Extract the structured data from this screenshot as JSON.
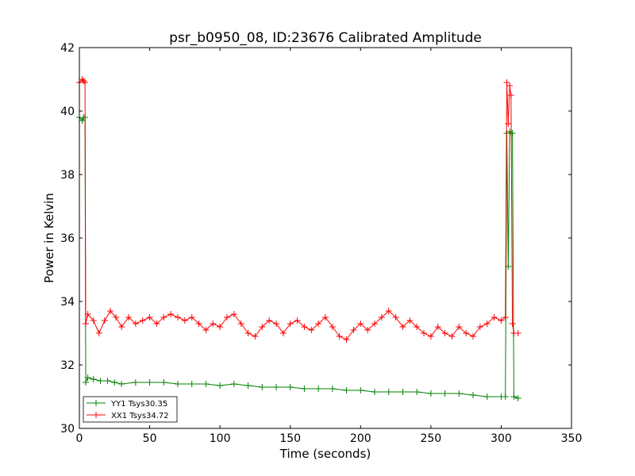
{
  "chart_data": {
    "type": "line",
    "title": "psr_b0950_08, ID:23676 Calibrated Amplitude",
    "xlabel": "Time (seconds)",
    "ylabel": "Power in Kelvin",
    "xlim": [
      0,
      350
    ],
    "ylim": [
      30,
      42
    ],
    "xticks": [
      0,
      50,
      100,
      150,
      200,
      250,
      300,
      350
    ],
    "yticks": [
      30,
      32,
      34,
      36,
      38,
      40,
      42
    ],
    "grid": false,
    "legend_position": "lower-left",
    "marker": "+",
    "series": [
      {
        "name": "YY1 Tsys30.35",
        "color": "#008000",
        "points": [
          [
            0,
            39.8
          ],
          [
            2,
            39.7
          ],
          [
            3,
            39.8
          ],
          [
            4,
            39.8
          ],
          [
            4.5,
            31.45
          ],
          [
            6,
            31.6
          ],
          [
            10,
            31.55
          ],
          [
            15,
            31.5
          ],
          [
            20,
            31.5
          ],
          [
            25,
            31.45
          ],
          [
            30,
            31.4
          ],
          [
            40,
            31.45
          ],
          [
            50,
            31.45
          ],
          [
            60,
            31.45
          ],
          [
            70,
            31.4
          ],
          [
            80,
            31.4
          ],
          [
            90,
            31.4
          ],
          [
            100,
            31.35
          ],
          [
            110,
            31.4
          ],
          [
            120,
            31.35
          ],
          [
            130,
            31.3
          ],
          [
            140,
            31.3
          ],
          [
            150,
            31.3
          ],
          [
            160,
            31.25
          ],
          [
            170,
            31.25
          ],
          [
            180,
            31.25
          ],
          [
            190,
            31.2
          ],
          [
            200,
            31.2
          ],
          [
            210,
            31.15
          ],
          [
            220,
            31.15
          ],
          [
            230,
            31.15
          ],
          [
            240,
            31.15
          ],
          [
            250,
            31.1
          ],
          [
            260,
            31.1
          ],
          [
            270,
            31.1
          ],
          [
            280,
            31.05
          ],
          [
            290,
            31.0
          ],
          [
            300,
            31.0
          ],
          [
            303,
            31.0
          ],
          [
            304,
            39.3
          ],
          [
            305,
            35.1
          ],
          [
            306,
            39.35
          ],
          [
            307,
            39.3
          ],
          [
            308,
            39.3
          ],
          [
            309,
            31.0
          ],
          [
            312,
            30.95
          ]
        ]
      },
      {
        "name": "XX1 Tsys34.72",
        "color": "#ff0000",
        "points": [
          [
            0,
            40.9
          ],
          [
            2,
            41.0
          ],
          [
            3,
            40.95
          ],
          [
            4,
            40.9
          ],
          [
            4.5,
            33.3
          ],
          [
            6,
            33.6
          ],
          [
            10,
            33.4
          ],
          [
            14,
            33.0
          ],
          [
            18,
            33.4
          ],
          [
            22,
            33.7
          ],
          [
            26,
            33.5
          ],
          [
            30,
            33.2
          ],
          [
            35,
            33.5
          ],
          [
            40,
            33.3
          ],
          [
            45,
            33.4
          ],
          [
            50,
            33.5
          ],
          [
            55,
            33.3
          ],
          [
            60,
            33.5
          ],
          [
            65,
            33.6
          ],
          [
            70,
            33.5
          ],
          [
            75,
            33.4
          ],
          [
            80,
            33.5
          ],
          [
            85,
            33.3
          ],
          [
            90,
            33.1
          ],
          [
            95,
            33.3
          ],
          [
            100,
            33.2
          ],
          [
            105,
            33.5
          ],
          [
            110,
            33.6
          ],
          [
            115,
            33.3
          ],
          [
            120,
            33.0
          ],
          [
            125,
            32.9
          ],
          [
            130,
            33.2
          ],
          [
            135,
            33.4
          ],
          [
            140,
            33.3
          ],
          [
            145,
            33.0
          ],
          [
            150,
            33.3
          ],
          [
            155,
            33.4
          ],
          [
            160,
            33.2
          ],
          [
            165,
            33.1
          ],
          [
            170,
            33.3
          ],
          [
            175,
            33.5
          ],
          [
            180,
            33.2
          ],
          [
            185,
            32.9
          ],
          [
            190,
            32.8
          ],
          [
            195,
            33.1
          ],
          [
            200,
            33.3
          ],
          [
            205,
            33.1
          ],
          [
            210,
            33.3
          ],
          [
            215,
            33.5
          ],
          [
            220,
            33.7
          ],
          [
            225,
            33.5
          ],
          [
            230,
            33.2
          ],
          [
            235,
            33.4
          ],
          [
            240,
            33.2
          ],
          [
            245,
            33.0
          ],
          [
            250,
            32.9
          ],
          [
            255,
            33.2
          ],
          [
            260,
            33.0
          ],
          [
            265,
            32.9
          ],
          [
            270,
            33.2
          ],
          [
            275,
            33.0
          ],
          [
            280,
            32.9
          ],
          [
            285,
            33.2
          ],
          [
            290,
            33.3
          ],
          [
            295,
            33.5
          ],
          [
            300,
            33.4
          ],
          [
            303,
            33.5
          ],
          [
            304,
            40.9
          ],
          [
            305,
            39.6
          ],
          [
            306,
            40.8
          ],
          [
            307,
            40.5
          ],
          [
            308,
            33.3
          ],
          [
            309,
            33.0
          ],
          [
            312,
            33.0
          ]
        ]
      }
    ]
  }
}
